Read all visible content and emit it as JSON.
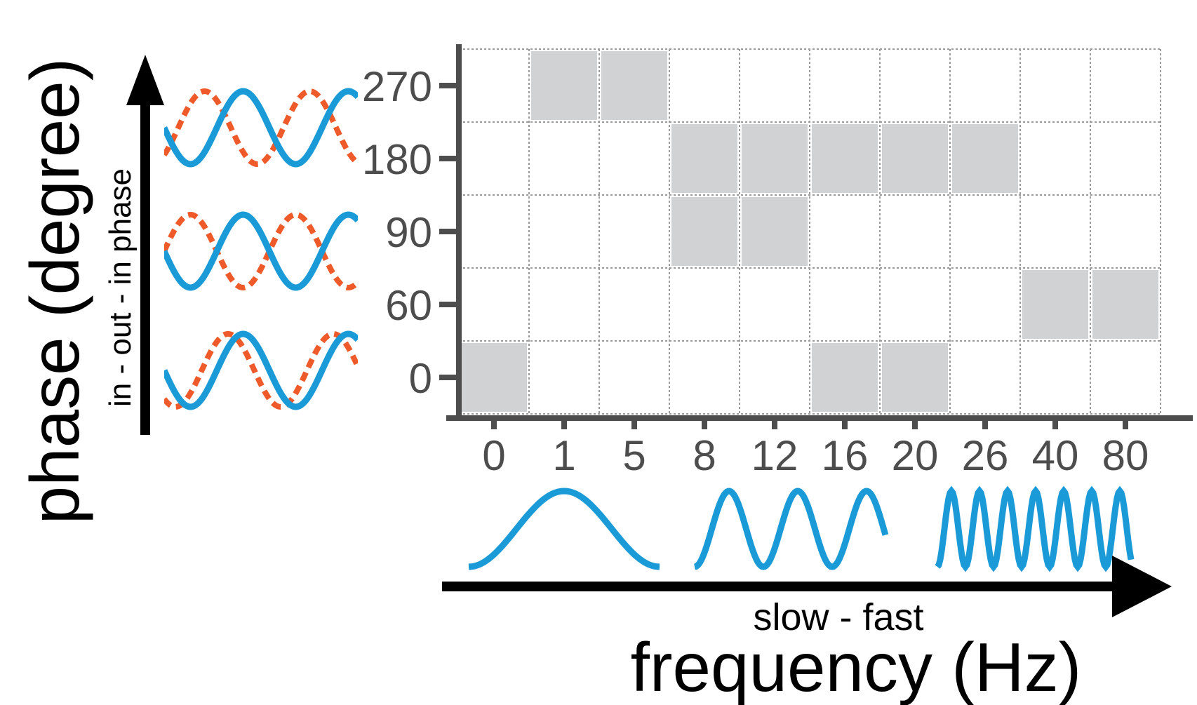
{
  "y_title": "phase (degree)",
  "y_subtitle": "in - out - in phase",
  "x_title": "frequency (Hz)",
  "x_subtitle": "slow - fast",
  "y_ticks": [
    "0",
    "60",
    "90",
    "180",
    "270"
  ],
  "x_ticks": [
    "0",
    "1",
    "5",
    "8",
    "12",
    "16",
    "20",
    "26",
    "40",
    "80"
  ],
  "colors": {
    "wave_primary": "#1a9ad6",
    "wave_secondary": "#ee5a2a",
    "cell_fill": "#d1d2d4",
    "axis": "#4d4d4d",
    "grid": "#9b9b9b"
  },
  "icons": [
    "vertical-arrow-icon",
    "horizontal-arrow-icon",
    "in-phase-wave-icon",
    "anti-phase-wave-icon",
    "shifted-phase-wave-icon",
    "slow-wave-icon",
    "medium-wave-icon",
    "fast-wave-icon"
  ],
  "chart_data": {
    "type": "heatmap",
    "grid": true,
    "x_categories": [
      "0",
      "1",
      "5",
      "8",
      "12",
      "16",
      "20",
      "26",
      "40",
      "80"
    ],
    "y_categories": [
      "0",
      "60",
      "90",
      "180",
      "270"
    ],
    "filled_cells": [
      {
        "x": "0",
        "y": "0"
      },
      {
        "x": "1",
        "y": "270"
      },
      {
        "x": "5",
        "y": "270"
      },
      {
        "x": "8",
        "y": "180"
      },
      {
        "x": "12",
        "y": "180"
      },
      {
        "x": "16",
        "y": "180"
      },
      {
        "x": "20",
        "y": "180"
      },
      {
        "x": "26",
        "y": "180"
      },
      {
        "x": "8",
        "y": "90"
      },
      {
        "x": "12",
        "y": "90"
      },
      {
        "x": "40",
        "y": "60"
      },
      {
        "x": "80",
        "y": "60"
      },
      {
        "x": "16",
        "y": "0"
      },
      {
        "x": "20",
        "y": "0"
      }
    ]
  }
}
